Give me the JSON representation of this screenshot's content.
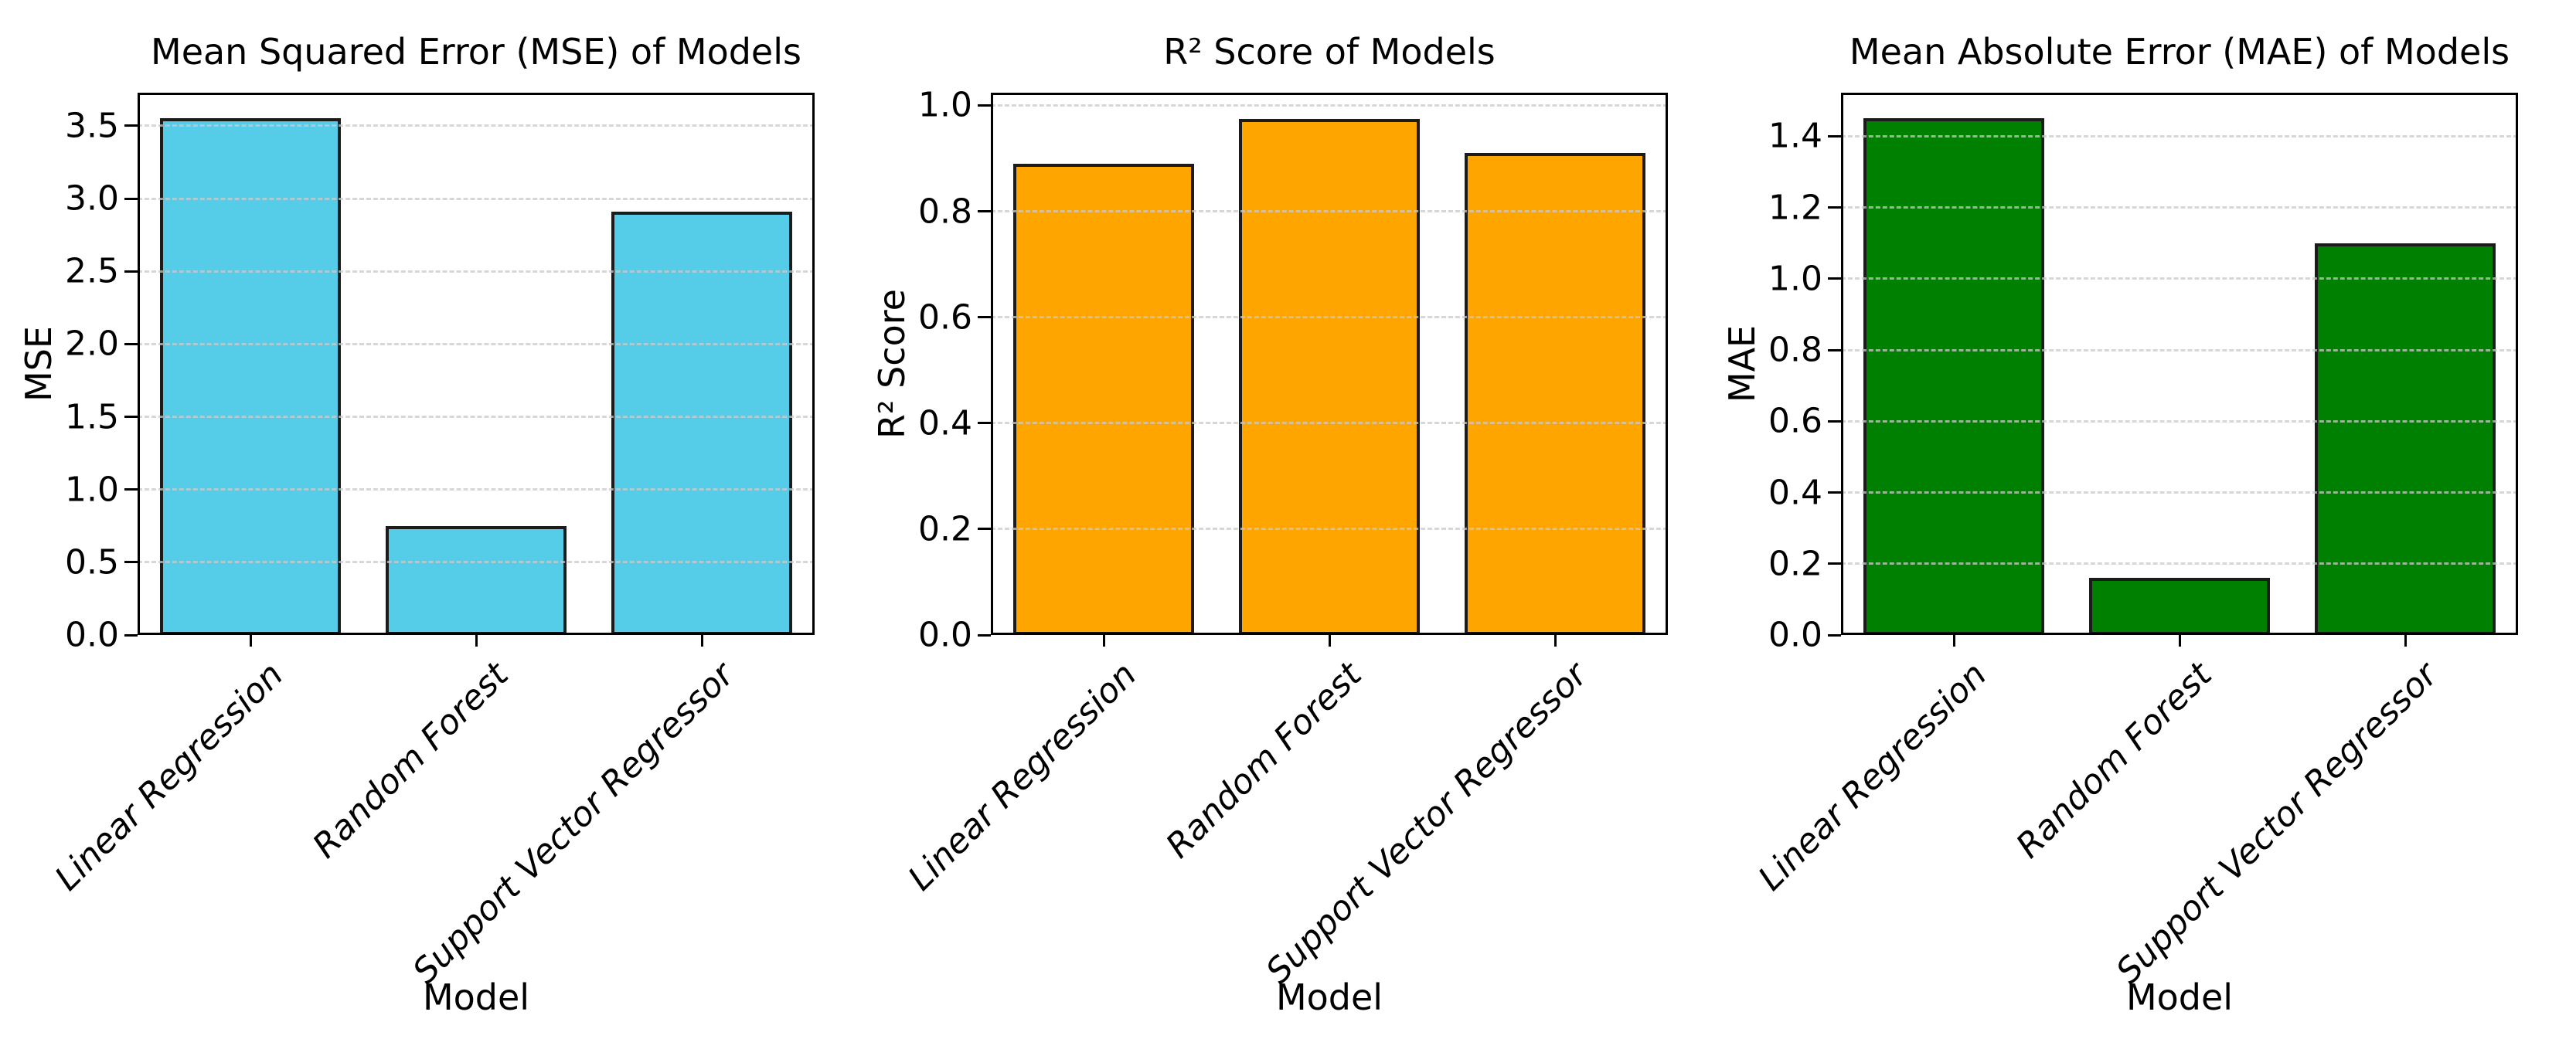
{
  "figure": {
    "background": "#ffffff",
    "text_color": "#000000",
    "grid": {
      "axis": "y",
      "style": "dashed",
      "color": "#cacaca"
    }
  },
  "chart_data": [
    {
      "type": "bar",
      "title": "Mean Squared Error (MSE) of Models",
      "xlabel": "Model",
      "ylabel": "MSE",
      "categories": [
        "Linear Regression",
        "Random Forest",
        "Support Vector Regressor"
      ],
      "values": [
        3.55,
        0.75,
        2.91
      ],
      "bar_color": "#55cde9",
      "bar_edge_color": "#1b1b1b",
      "ylim": [
        0,
        3.7275
      ],
      "yticks": [
        0.0,
        0.5,
        1.0,
        1.5,
        2.0,
        2.5,
        3.0,
        3.5
      ],
      "ytick_labels": [
        "0.0",
        "0.5",
        "1.0",
        "1.5",
        "2.0",
        "2.5",
        "3.0",
        "3.5"
      ],
      "legend": "none"
    },
    {
      "type": "bar",
      "title": "R² Score of Models",
      "xlabel": "Model",
      "ylabel": "R² Score",
      "categories": [
        "Linear Regression",
        "Random Forest",
        "Support Vector Regressor"
      ],
      "values": [
        0.89,
        0.975,
        0.91
      ],
      "bar_color": "#ffa500",
      "bar_edge_color": "#1b1b1b",
      "ylim": [
        0,
        1.024
      ],
      "yticks": [
        0.0,
        0.2,
        0.4,
        0.6,
        0.8,
        1.0
      ],
      "ytick_labels": [
        "0.0",
        "0.2",
        "0.4",
        "0.6",
        "0.8",
        "1.0"
      ],
      "legend": "none"
    },
    {
      "type": "bar",
      "title": "Mean Absolute Error (MAE) of Models",
      "xlabel": "Model",
      "ylabel": "MAE",
      "categories": [
        "Linear Regression",
        "Random Forest",
        "Support Vector Regressor"
      ],
      "values": [
        1.45,
        0.16,
        1.1
      ],
      "bar_color": "#008000",
      "bar_edge_color": "#1b1b1b",
      "ylim": [
        0,
        1.5225
      ],
      "yticks": [
        0.0,
        0.2,
        0.4,
        0.6,
        0.8,
        1.0,
        1.2,
        1.4
      ],
      "ytick_labels": [
        "0.0",
        "0.2",
        "0.4",
        "0.6",
        "0.8",
        "1.0",
        "1.2",
        "1.4"
      ],
      "legend": "none"
    }
  ]
}
